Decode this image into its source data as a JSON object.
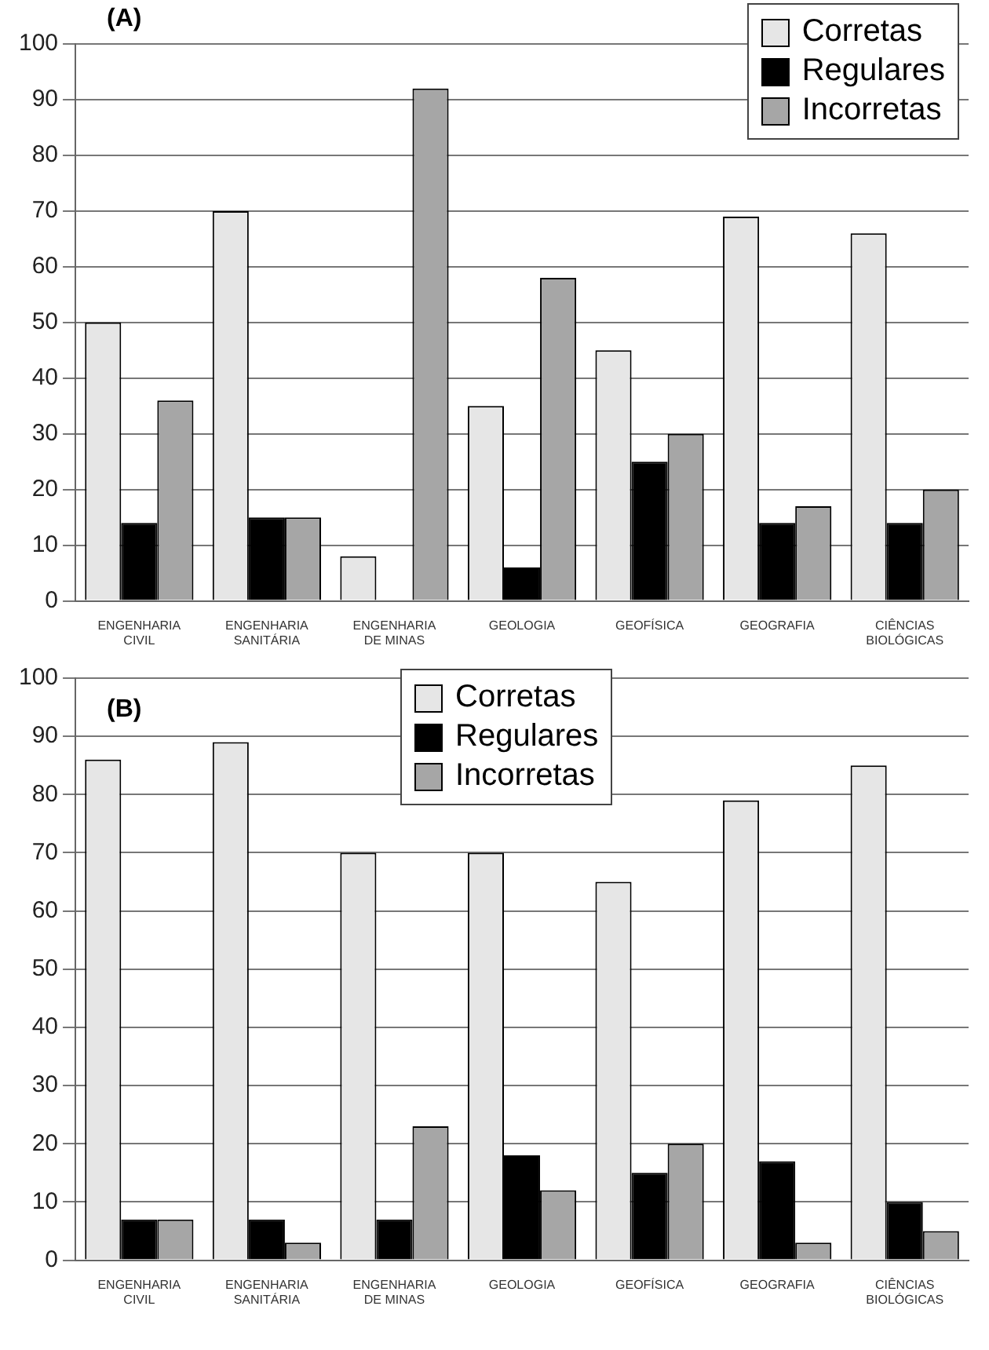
{
  "chart_data": [
    {
      "type": "bar",
      "title": "(A)",
      "categories": [
        "ENGENHARIA CIVIL",
        "ENGENHARIA SANITÁRIA",
        "ENGENHARIA DE MINAS",
        "GEOLOGIA",
        "GEOFÍSICA",
        "GEOGRAFIA",
        "CIÊNCIAS BIOLÓGICAS"
      ],
      "series": [
        {
          "name": "Corretas",
          "color": "#e6e6e6",
          "values": [
            50,
            70,
            8,
            35,
            45,
            69,
            66
          ]
        },
        {
          "name": "Regulares",
          "color": "#000000",
          "values": [
            14,
            15,
            0,
            6,
            25,
            14,
            14
          ]
        },
        {
          "name": "Incorretas",
          "color": "#a6a6a6",
          "values": [
            36,
            15,
            92,
            58,
            30,
            17,
            20
          ]
        }
      ],
      "ylim": [
        0,
        100
      ],
      "yticks": [
        0,
        10,
        20,
        30,
        40,
        50,
        60,
        70,
        80,
        90,
        100
      ],
      "grid": "y",
      "legend": "top right"
    },
    {
      "type": "bar",
      "title": "(B)",
      "categories": [
        "ENGENHARIA CIVIL",
        "ENGENHARIA SANITÁRIA",
        "ENGENHARIA DE MINAS",
        "GEOLOGIA",
        "GEOFÍSICA",
        "GEOGRAFIA",
        "CIÊNCIAS BIOLÓGICAS"
      ],
      "series": [
        {
          "name": "Corretas",
          "color": "#e6e6e6",
          "values": [
            86,
            89,
            70,
            70,
            65,
            79,
            85
          ]
        },
        {
          "name": "Regulares",
          "color": "#000000",
          "values": [
            7,
            7,
            7,
            18,
            15,
            17,
            10
          ]
        },
        {
          "name": "Incorretas",
          "color": "#a6a6a6",
          "values": [
            7,
            3,
            23,
            12,
            20,
            3,
            5
          ]
        }
      ],
      "ylim": [
        0,
        100
      ],
      "yticks": [
        0,
        10,
        20,
        30,
        40,
        50,
        60,
        70,
        80,
        90,
        100
      ],
      "grid": "y",
      "legend": "top"
    }
  ]
}
